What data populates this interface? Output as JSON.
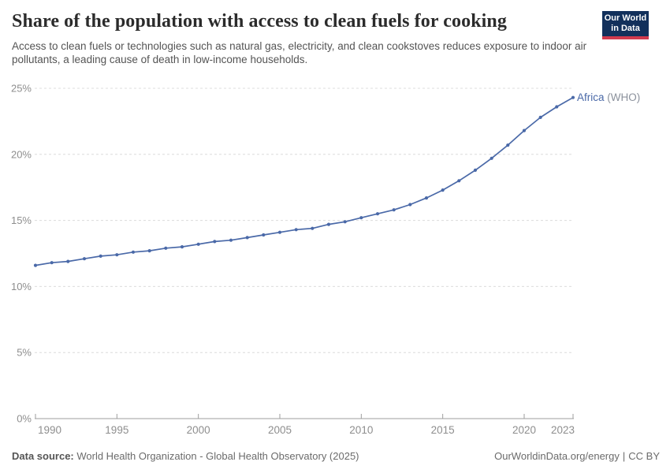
{
  "header": {
    "title": "Share of the population with access to clean fuels for cooking",
    "subtitle": "Access to clean fuels or technologies such as natural gas, electricity, and clean cookstoves reduces exposure to indoor air pollutants, a leading cause of death in low-income households.",
    "logo": {
      "line1": "Our World",
      "line2": "in Data",
      "bg_color": "#12305b",
      "accent_color": "#d13b4e"
    }
  },
  "chart_data": {
    "type": "line",
    "title": "Share of the population with access to clean fuels for cooking",
    "x": [
      1990,
      1991,
      1992,
      1993,
      1994,
      1995,
      1996,
      1997,
      1998,
      1999,
      2000,
      2001,
      2002,
      2003,
      2004,
      2005,
      2006,
      2007,
      2008,
      2009,
      2010,
      2011,
      2012,
      2013,
      2014,
      2015,
      2016,
      2017,
      2018,
      2019,
      2020,
      2021,
      2022,
      2023
    ],
    "series": [
      {
        "name": "Africa (WHO)",
        "label_main": "Africa",
        "label_suffix": " (WHO)",
        "color": "#4a69a8",
        "values": [
          11.6,
          11.8,
          11.9,
          12.1,
          12.3,
          12.4,
          12.6,
          12.7,
          12.9,
          13.0,
          13.2,
          13.4,
          13.5,
          13.7,
          13.9,
          14.1,
          14.3,
          14.4,
          14.7,
          14.9,
          15.2,
          15.5,
          15.8,
          16.2,
          16.7,
          17.3,
          18.0,
          18.8,
          19.7,
          20.7,
          21.8,
          22.8,
          23.6,
          24.3
        ]
      }
    ],
    "xlabel": "",
    "ylabel": "",
    "xlim": [
      1990,
      2023
    ],
    "ylim": [
      0,
      25
    ],
    "xticks": [
      1990,
      1995,
      2000,
      2005,
      2010,
      2015,
      2020,
      2023
    ],
    "xtick_labels": [
      "1990",
      "1995",
      "2000",
      "2005",
      "2010",
      "2015",
      "2020",
      "2023"
    ],
    "yticks": [
      0,
      5,
      10,
      15,
      20,
      25
    ],
    "ytick_labels": [
      "0%",
      "5%",
      "10%",
      "15%",
      "20%",
      "25%"
    ],
    "grid": "horizontal-dashed",
    "legend_position": "end-of-line",
    "colors": {
      "gridline": "#dcdcdc",
      "axis": "#9e9e9e",
      "tick_text": "#8e8e8e",
      "label_suffix_text": "#8b919c"
    }
  },
  "footer": {
    "datasource_label": "Data source:",
    "datasource_value": " World Health Organization - Global Health Observatory (2025)",
    "site": "OurWorldinData.org/energy",
    "separator": "|",
    "license": "CC BY"
  }
}
